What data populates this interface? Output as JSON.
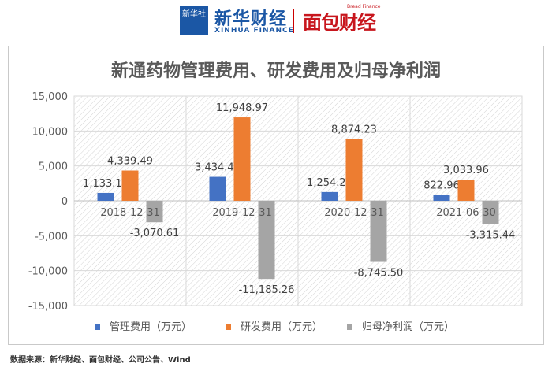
{
  "header": {
    "xinhua_badge": "新华社",
    "xinhua_finance_cn": "新华财经",
    "xinhua_finance_en": "XINHUA FINANCE",
    "mianbao_cn": "面包财经",
    "mianbao_en": "Bread Finance"
  },
  "colors": {
    "admin": "#4472c4",
    "rd": "#ed7d31",
    "profit": "#a5a5a5",
    "grid": "#d9d9d9",
    "text": "#595959"
  },
  "chart_data": {
    "type": "bar",
    "title": "新通药物管理费用、研发费用及归母净利润",
    "categories": [
      "2018-12-31",
      "2019-12-31",
      "2020-12-31",
      "2021-06-30"
    ],
    "series": [
      {
        "name": "管理费用（万元）",
        "values": [
          1133.1,
          3434.43,
          1254.2,
          822.96
        ],
        "labels": [
          "1,133.10",
          "3,434.43",
          "1,254.20",
          "822.96"
        ]
      },
      {
        "name": "研发费用（万元）",
        "values": [
          4339.49,
          11948.97,
          8874.23,
          3033.96
        ],
        "labels": [
          "4,339.49",
          "11,948.97",
          "8,874.23",
          "3,033.96"
        ]
      },
      {
        "name": "归母净利润（万元）",
        "values": [
          -3070.61,
          -11185.26,
          -8745.5,
          -3315.44
        ],
        "labels": [
          "-3,070.61",
          "-11,185.26",
          "-8,745.50",
          "-3,315.44"
        ]
      }
    ],
    "ylim": [
      -15000,
      15000
    ],
    "yticks": [
      15000,
      10000,
      5000,
      0,
      -5000,
      -10000,
      -15000
    ],
    "ytick_labels": [
      "15,000",
      "10,000",
      "5,000",
      "0",
      "-5,000",
      "-10,000",
      "-15,000"
    ],
    "legend_position": "bottom",
    "grid": true
  },
  "source": "数据来源：新华财经、面包财经、公司公告、Wind"
}
